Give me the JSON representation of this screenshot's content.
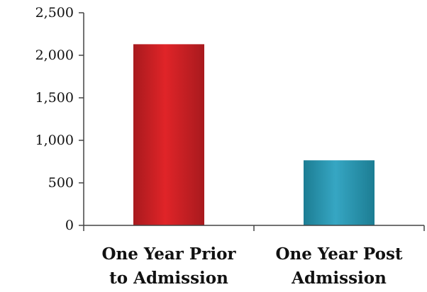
{
  "chart_data": {
    "type": "bar",
    "categories": [
      {
        "line1": "One Year Prior",
        "line2": "to Admission"
      },
      {
        "line1": "One Year Post",
        "line2": "Admission"
      }
    ],
    "values": [
      2130,
      765
    ],
    "bar_colors": [
      {
        "edge": "#a81a1e",
        "mid": "#e02428"
      },
      {
        "edge": "#1c7d93",
        "mid": "#36a6c3"
      }
    ],
    "ylim": [
      0,
      2500
    ],
    "yticks": [
      0,
      500,
      1000,
      1500,
      2000,
      2500
    ],
    "ytick_labels": [
      "0",
      "500",
      "1,000",
      "1,500",
      "2,000",
      "2,500"
    ],
    "grid": false,
    "title": "",
    "xlabel": "",
    "ylabel": ""
  }
}
